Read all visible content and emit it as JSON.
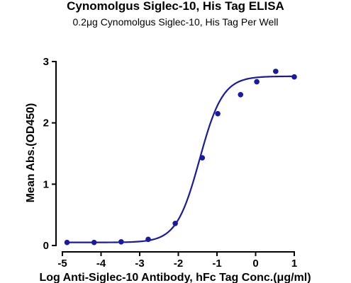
{
  "chart_data": {
    "type": "scatter",
    "title": "Cynomolgus Siglec-10, His Tag ELISA",
    "subtitle": "0.2μg Cynomolgus Siglec-10, His Tag Per Well",
    "xlabel": "Log Anti-Siglec-10 Antibody, hFc Tag Conc.(μg/ml)",
    "ylabel": "Mean Abs.(OD450)",
    "xlim": [
      -5,
      1
    ],
    "ylim": [
      0,
      3
    ],
    "x_ticks": [
      -5,
      -4,
      -3,
      -2,
      -1,
      0,
      1
    ],
    "y_ticks": [
      0,
      1,
      2,
      3
    ],
    "grid": false,
    "legend": "none",
    "colors": {
      "series": "#1a1aa0"
    },
    "series": [
      {
        "points": [
          {
            "x": -4.88,
            "y": 0.05
          },
          {
            "x": -4.18,
            "y": 0.05
          },
          {
            "x": -3.48,
            "y": 0.06
          },
          {
            "x": -2.78,
            "y": 0.1
          },
          {
            "x": -2.08,
            "y": 0.36
          },
          {
            "x": -1.38,
            "y": 1.43
          },
          {
            "x": -0.98,
            "y": 2.15
          },
          {
            "x": -0.39,
            "y": 2.46
          },
          {
            "x": 0.03,
            "y": 2.67
          },
          {
            "x": 0.52,
            "y": 2.84
          },
          {
            "x": 1.0,
            "y": 2.75
          }
        ],
        "fit": {
          "model": "4PL",
          "bottom": 0.05,
          "top": 2.76,
          "ec50_log": -1.45,
          "hill": 1.45,
          "x_range": [
            -4.88,
            1.0
          ]
        }
      }
    ]
  }
}
